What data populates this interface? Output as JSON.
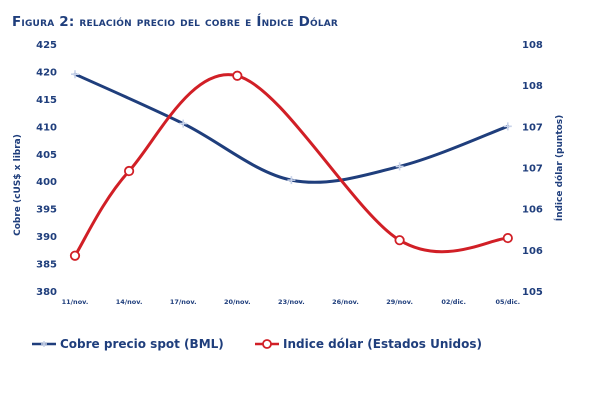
{
  "title": "Figura 2: relación precio del cobre e Índice Dólar",
  "chart_data": {
    "type": "line",
    "categories": [
      "11/nov.",
      "14/nov.",
      "17/nov.",
      "20/nov.",
      "23/nov.",
      "26/nov.",
      "29/nov.",
      "02/dic.",
      "05/dic."
    ],
    "ylabel": "Cobre (cUS$ x libra)",
    "y2label": "Índice dólar (puntos)",
    "ylim": [
      380,
      425
    ],
    "y2lim": [
      105,
      108.5
    ],
    "yticks": [
      "380",
      "385",
      "390",
      "395",
      "400",
      "405",
      "410",
      "415",
      "420",
      "425"
    ],
    "y2ticks": [
      "105",
      "106",
      "106",
      "107",
      "107",
      "108",
      "108"
    ],
    "grid": false,
    "legend_position": "bottom",
    "series": [
      {
        "name": "Cobre precio spot (BML)",
        "axis": "left",
        "color": "#1f3e7c",
        "marker": "plus",
        "x": [
          0,
          2,
          4,
          6,
          8
        ],
        "values": [
          419.5,
          410.5,
          400.2,
          402.7,
          410.0
        ]
      },
      {
        "name": "Indice dólar (Estados Unidos)",
        "axis": "right",
        "color": "#d11f26",
        "marker": "circle",
        "x": [
          0,
          1,
          3,
          6,
          8
        ],
        "values": [
          105.5,
          106.7,
          108.05,
          105.72,
          105.75
        ]
      }
    ]
  }
}
